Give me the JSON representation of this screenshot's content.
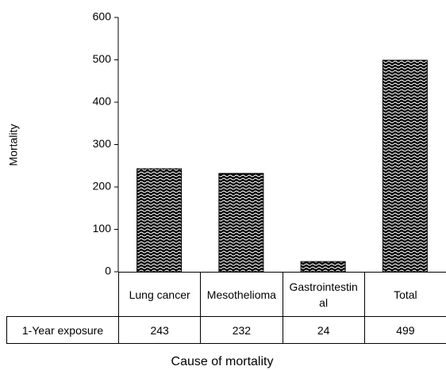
{
  "chart_data": {
    "type": "bar",
    "y_label": "Mortality",
    "x_label": "Cause of mortality",
    "categories": [
      "Lung cancer",
      "Mesothelioma",
      "Gastrointestinal",
      "Total"
    ],
    "series": [
      {
        "name": "1-Year exposure",
        "color": "#000000",
        "values": [
          243,
          232,
          24,
          499
        ]
      }
    ],
    "ylim": [
      0,
      600
    ],
    "yticks": [
      0,
      100,
      200,
      300,
      400,
      500,
      600
    ],
    "grid": false
  }
}
